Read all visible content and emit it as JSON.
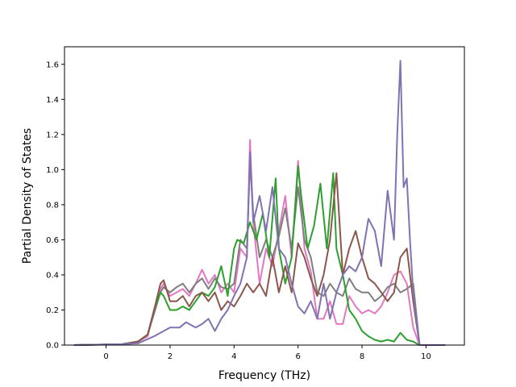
{
  "chart_data": {
    "type": "line",
    "title": "",
    "xlabel": "Frequency (THz)",
    "ylabel": "Partial Density of States",
    "xlim": [
      -1.3,
      11.2
    ],
    "ylim": [
      0.0,
      1.7
    ],
    "xticks": [
      0,
      2,
      4,
      6,
      8,
      10
    ],
    "xtick_labels": [
      "0",
      "2",
      "4",
      "6",
      "8",
      "10"
    ],
    "yticks": [
      0.0,
      0.2,
      0.4,
      0.6,
      0.8,
      1.0,
      1.2,
      1.4,
      1.6
    ],
    "ytick_labels": [
      "0.0",
      "0.2",
      "0.4",
      "0.6",
      "0.8",
      "1.0",
      "1.2",
      "1.4",
      "1.6"
    ],
    "grid": false,
    "series": [
      {
        "color": "#e377c2",
        "x": [
          -1.0,
          0.5,
          1.0,
          1.3,
          1.5,
          1.7,
          1.8,
          2.0,
          2.2,
          2.4,
          2.6,
          2.8,
          3.0,
          3.2,
          3.4,
          3.6,
          3.8,
          4.0,
          4.2,
          4.4,
          4.5,
          4.6,
          4.8,
          5.0,
          5.2,
          5.4,
          5.6,
          5.8,
          6.0,
          6.2,
          6.4,
          6.6,
          6.8,
          7.0,
          7.2,
          7.4,
          7.6,
          7.8,
          8.0,
          8.2,
          8.4,
          8.6,
          8.8,
          9.0,
          9.2,
          9.4,
          9.6,
          9.8,
          10.6
        ],
        "y": [
          0.0,
          0.005,
          0.02,
          0.05,
          0.2,
          0.32,
          0.35,
          0.28,
          0.3,
          0.32,
          0.28,
          0.35,
          0.43,
          0.35,
          0.4,
          0.3,
          0.35,
          0.3,
          0.55,
          0.5,
          1.17,
          0.7,
          0.35,
          0.55,
          0.45,
          0.65,
          0.85,
          0.5,
          1.05,
          0.55,
          0.42,
          0.15,
          0.15,
          0.25,
          0.12,
          0.12,
          0.28,
          0.22,
          0.18,
          0.2,
          0.18,
          0.22,
          0.3,
          0.4,
          0.42,
          0.35,
          0.1,
          0.0,
          0.0
        ]
      },
      {
        "color": "#7f7f7f",
        "x": [
          -1.0,
          0.5,
          1.0,
          1.3,
          1.5,
          1.7,
          1.8,
          2.0,
          2.2,
          2.4,
          2.6,
          2.8,
          3.0,
          3.2,
          3.4,
          3.6,
          3.8,
          4.0,
          4.2,
          4.4,
          4.5,
          4.6,
          4.8,
          5.0,
          5.2,
          5.4,
          5.6,
          5.8,
          6.0,
          6.2,
          6.4,
          6.6,
          6.8,
          7.0,
          7.2,
          7.4,
          7.6,
          7.8,
          8.0,
          8.2,
          8.4,
          8.6,
          8.8,
          9.0,
          9.2,
          9.4,
          9.6,
          9.8,
          10.6
        ],
        "y": [
          0.0,
          0.005,
          0.02,
          0.06,
          0.18,
          0.3,
          0.33,
          0.3,
          0.33,
          0.35,
          0.3,
          0.35,
          0.38,
          0.32,
          0.38,
          0.33,
          0.32,
          0.35,
          0.6,
          0.55,
          1.05,
          0.75,
          0.5,
          0.6,
          0.5,
          0.62,
          0.78,
          0.55,
          0.9,
          0.6,
          0.5,
          0.3,
          0.28,
          0.35,
          0.3,
          0.28,
          0.38,
          0.32,
          0.3,
          0.3,
          0.25,
          0.28,
          0.33,
          0.35,
          0.3,
          0.32,
          0.35,
          0.0,
          0.0
        ]
      },
      {
        "color": "#2ca02c",
        "x": [
          -1.0,
          0.5,
          1.0,
          1.3,
          1.5,
          1.7,
          1.8,
          2.0,
          2.2,
          2.4,
          2.6,
          2.8,
          3.0,
          3.2,
          3.4,
          3.6,
          3.8,
          4.0,
          4.1,
          4.3,
          4.5,
          4.7,
          4.9,
          5.1,
          5.3,
          5.4,
          5.6,
          5.8,
          6.0,
          6.1,
          6.3,
          6.5,
          6.7,
          6.9,
          7.1,
          7.2,
          7.4,
          7.6,
          7.8,
          8.0,
          8.2,
          8.4,
          8.6,
          8.8,
          9.0,
          9.2,
          9.4,
          9.6,
          9.8,
          10.6
        ],
        "y": [
          0.0,
          0.005,
          0.02,
          0.06,
          0.2,
          0.3,
          0.28,
          0.2,
          0.2,
          0.22,
          0.2,
          0.25,
          0.3,
          0.28,
          0.33,
          0.45,
          0.28,
          0.55,
          0.6,
          0.58,
          0.7,
          0.6,
          0.75,
          0.5,
          0.95,
          0.55,
          0.35,
          0.5,
          1.02,
          0.85,
          0.55,
          0.68,
          0.92,
          0.55,
          0.98,
          0.55,
          0.4,
          0.2,
          0.15,
          0.08,
          0.05,
          0.03,
          0.02,
          0.03,
          0.02,
          0.07,
          0.03,
          0.02,
          0.0,
          0.0
        ]
      },
      {
        "color": "#8c564b",
        "x": [
          -1.0,
          0.5,
          1.0,
          1.3,
          1.5,
          1.7,
          1.8,
          2.0,
          2.2,
          2.4,
          2.6,
          2.8,
          3.0,
          3.2,
          3.4,
          3.6,
          3.8,
          4.0,
          4.2,
          4.4,
          4.6,
          4.8,
          5.0,
          5.2,
          5.4,
          5.6,
          5.8,
          6.0,
          6.2,
          6.4,
          6.6,
          6.8,
          7.0,
          7.2,
          7.4,
          7.6,
          7.8,
          8.0,
          8.2,
          8.4,
          8.6,
          8.8,
          9.0,
          9.2,
          9.4,
          9.6,
          9.8,
          10.6
        ],
        "y": [
          0.0,
          0.005,
          0.02,
          0.06,
          0.2,
          0.35,
          0.37,
          0.25,
          0.25,
          0.28,
          0.22,
          0.28,
          0.3,
          0.25,
          0.3,
          0.2,
          0.25,
          0.22,
          0.28,
          0.35,
          0.3,
          0.35,
          0.28,
          0.5,
          0.3,
          0.45,
          0.3,
          0.58,
          0.5,
          0.38,
          0.28,
          0.4,
          0.6,
          0.98,
          0.4,
          0.55,
          0.65,
          0.5,
          0.38,
          0.35,
          0.3,
          0.25,
          0.3,
          0.5,
          0.55,
          0.25,
          0.0,
          0.0
        ]
      },
      {
        "color": "#8172b2",
        "x": [
          -1.0,
          0.5,
          1.0,
          1.5,
          2.0,
          2.3,
          2.5,
          2.8,
          3.0,
          3.2,
          3.4,
          3.6,
          3.8,
          4.0,
          4.2,
          4.4,
          4.5,
          4.6,
          4.8,
          5.0,
          5.2,
          5.4,
          5.6,
          5.8,
          6.0,
          6.2,
          6.4,
          6.6,
          6.8,
          7.0,
          7.2,
          7.4,
          7.6,
          7.8,
          8.0,
          8.2,
          8.4,
          8.6,
          8.8,
          9.0,
          9.1,
          9.2,
          9.3,
          9.4,
          9.5,
          9.6,
          9.8,
          10.6
        ],
        "y": [
          0.0,
          0.005,
          0.01,
          0.05,
          0.1,
          0.1,
          0.13,
          0.1,
          0.12,
          0.15,
          0.08,
          0.15,
          0.2,
          0.28,
          0.35,
          0.5,
          1.1,
          0.7,
          0.85,
          0.65,
          0.9,
          0.55,
          0.5,
          0.35,
          0.22,
          0.18,
          0.25,
          0.15,
          0.35,
          0.15,
          0.3,
          0.4,
          0.45,
          0.42,
          0.5,
          0.72,
          0.65,
          0.45,
          0.88,
          0.6,
          1.2,
          1.62,
          0.9,
          0.95,
          0.6,
          0.3,
          0.0,
          0.0
        ]
      }
    ]
  }
}
